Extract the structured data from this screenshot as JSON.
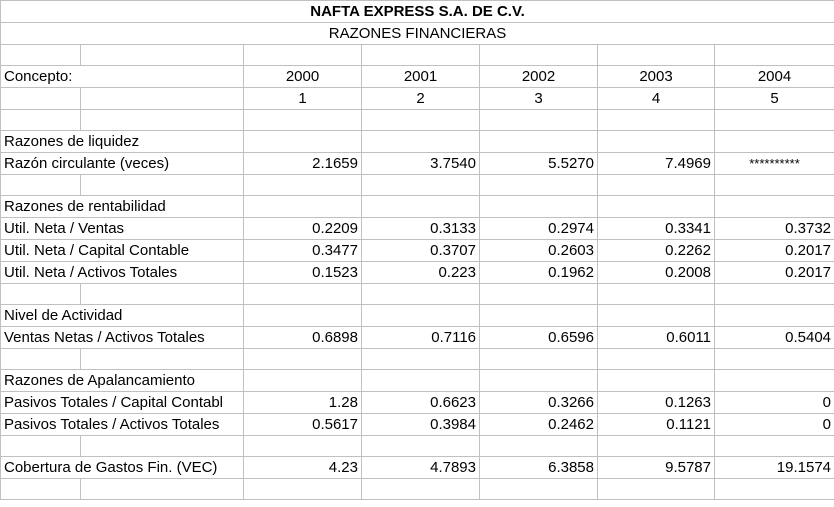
{
  "sheet": {
    "title": "NAFTA EXPRESS S.A. DE C.V.",
    "subtitle": "RAZONES FINANCIERAS",
    "concept_label": "Concepto:",
    "years": [
      "2000",
      "2001",
      "2002",
      "2003",
      "2004"
    ],
    "periods": [
      "1",
      "2",
      "3",
      "4",
      "5"
    ],
    "sections": {
      "liquidez": {
        "heading": "Razones de liquidez",
        "rows": [
          {
            "label": "Razón circulante (veces)",
            "values": [
              "2.1659",
              "3.7540",
              "5.5270",
              "7.4969",
              "**********"
            ]
          }
        ]
      },
      "rentabilidad": {
        "heading": "Razones de rentabilidad",
        "rows": [
          {
            "label": "Util. Neta / Ventas",
            "values": [
              "0.2209",
              "0.3133",
              "0.2974",
              "0.3341",
              "0.3732"
            ]
          },
          {
            "label": "Util. Neta / Capital Contable",
            "values": [
              "0.3477",
              "0.3707",
              "0.2603",
              "0.2262",
              "0.2017"
            ]
          },
          {
            "label": "Util. Neta / Activos Totales",
            "values": [
              "0.1523",
              "0.223",
              "0.1962",
              "0.2008",
              "0.2017"
            ]
          }
        ]
      },
      "actividad": {
        "heading": "Nivel de Actividad",
        "rows": [
          {
            "label": "Ventas Netas / Activos Totales",
            "values": [
              "0.6898",
              "0.7116",
              "0.6596",
              "0.6011",
              "0.5404"
            ]
          }
        ]
      },
      "apalancamiento": {
        "heading": "Razones de Apalancamiento",
        "rows": [
          {
            "label": "Pasivos Totales / Capital Contabl",
            "values": [
              "1.28",
              "0.6623",
              "0.3266",
              "0.1263",
              "0"
            ]
          },
          {
            "label": "Pasivos Totales / Activos Totales",
            "values": [
              "0.5617",
              "0.3984",
              "0.2462",
              "0.1121",
              "0"
            ]
          }
        ]
      },
      "cobertura": {
        "rows": [
          {
            "label": "Cobertura de Gastos Fin. (VEC)",
            "values": [
              "4.23",
              "4.7893",
              "6.3858",
              "9.5787",
              "19.1574"
            ]
          }
        ]
      }
    }
  }
}
